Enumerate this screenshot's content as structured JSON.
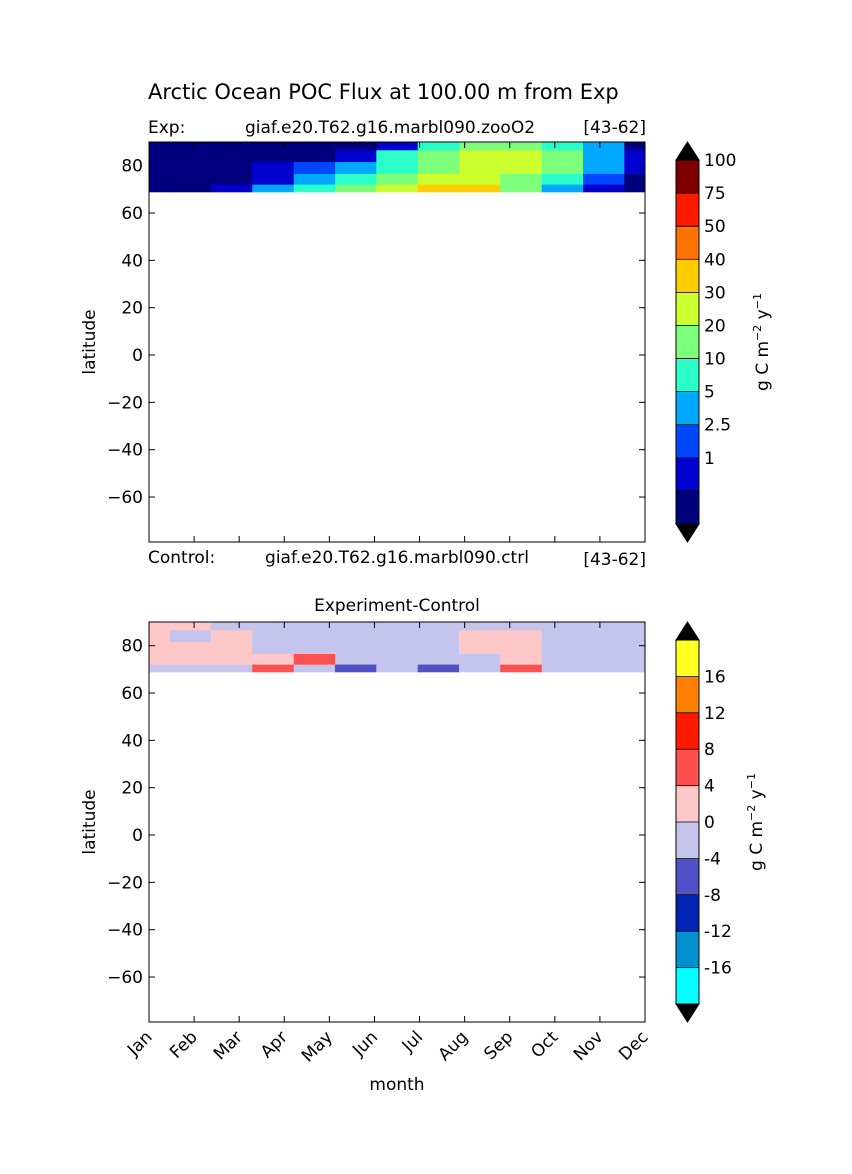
{
  "title": "Arctic Ocean POC Flux at 100.00 m from Exp",
  "top_panel": {
    "left_label": "Exp:",
    "case_name": "giaf.e20.T62.g16.marbl090.zooO2",
    "years": "[43-62]",
    "bottom_left_label": "Control:",
    "bottom_case_name": "giaf.e20.T62.g16.marbl090.ctrl",
    "bottom_years": "[43-62]"
  },
  "bottom_panel": {
    "title": "Experiment-Control"
  },
  "colorbar_unit": "g C m",
  "colorbar_unit_sup1": "−2",
  "colorbar_unit_mid": " y",
  "colorbar_unit_sup2": "−1",
  "colors": {
    "top_levels": [
      "#00007f",
      "#0000d0",
      "#0048ff",
      "#00a8ff",
      "#2affca",
      "#7cff7a",
      "#cbff2d",
      "#ffcc00",
      "#ff7200",
      "#ff1a00",
      "#7f0000"
    ],
    "top_over": "#000000",
    "top_under": "#000000",
    "diff_levels": [
      "#00ffff",
      "#008fcf",
      "#0024b4",
      "#5050c8",
      "#c4c4ec",
      "#ffc8c8",
      "#ff5050",
      "#ff1a00",
      "#ff7f00",
      "#ffff20"
    ],
    "diff_over": "#000000",
    "diff_under": "#000000"
  },
  "chart_data": [
    {
      "type": "heatmap",
      "title": "Arctic Ocean POC Flux at 100.00 m from Exp",
      "xlabel": "",
      "ylabel": "latitude",
      "x_categories": [
        "Jan",
        "Feb",
        "Mar",
        "Apr",
        "May",
        "Jun",
        "Jul",
        "Aug",
        "Sep",
        "Oct",
        "Nov",
        "Dec"
      ],
      "xlim": [
        0,
        11
      ],
      "ylim": [
        -79,
        90
      ],
      "yticks": [
        80,
        60,
        40,
        20,
        0,
        -20,
        -40,
        -60
      ],
      "data_lat_range": [
        69,
        90
      ],
      "colorbar_levels": [
        "",
        "1",
        "2.5",
        "5",
        "10",
        "20",
        "30",
        "40",
        "50",
        "75",
        "100"
      ],
      "colorbar_label": "g C m^-2 y^-1",
      "band_lats": [
        89,
        84,
        79,
        74,
        70
      ],
      "level_index": [
        [
          0,
          0,
          0,
          0,
          0,
          0,
          1,
          4,
          5,
          5,
          4,
          3,
          0
        ],
        [
          0,
          0,
          0,
          0,
          0,
          1,
          4,
          5,
          6,
          6,
          5,
          3,
          1
        ],
        [
          0,
          0,
          0,
          1,
          2,
          3,
          4,
          5,
          6,
          6,
          5,
          3,
          1
        ],
        [
          0,
          0,
          0,
          1,
          3,
          4,
          5,
          6,
          6,
          5,
          4,
          2,
          0
        ],
        [
          0,
          0,
          1,
          3,
          4,
          5,
          6,
          7,
          7,
          5,
          3,
          1,
          0
        ]
      ]
    },
    {
      "type": "heatmap",
      "title": "Experiment-Control",
      "xlabel": "month",
      "ylabel": "latitude",
      "x_categories": [
        "Jan",
        "Feb",
        "Mar",
        "Apr",
        "May",
        "Jun",
        "Jul",
        "Aug",
        "Sep",
        "Oct",
        "Nov",
        "Dec"
      ],
      "xlim": [
        0,
        11
      ],
      "ylim": [
        -79,
        90
      ],
      "yticks": [
        80,
        60,
        40,
        20,
        0,
        -20,
        -40,
        -60
      ],
      "data_lat_range": [
        69,
        90
      ],
      "colorbar_levels": [
        "-16",
        "-12",
        "-8",
        "-4",
        "0",
        "4",
        "8",
        "12",
        "16"
      ],
      "colorbar_label": "g C m^-2 y^-1",
      "band_lats": [
        89,
        84,
        79,
        74,
        70
      ],
      "level_index": [
        [
          5,
          5,
          4,
          4,
          4,
          4,
          4,
          4,
          4,
          4,
          4,
          4,
          4
        ],
        [
          5,
          4,
          5,
          4,
          4,
          4,
          4,
          4,
          5,
          5,
          4,
          4,
          4
        ],
        [
          5,
          5,
          5,
          4,
          4,
          4,
          4,
          4,
          5,
          5,
          4,
          4,
          4
        ],
        [
          5,
          5,
          5,
          5,
          6,
          4,
          4,
          4,
          4,
          5,
          4,
          4,
          4
        ],
        [
          4,
          4,
          4,
          6,
          4,
          3,
          4,
          3,
          4,
          6,
          4,
          4,
          4
        ]
      ]
    }
  ]
}
